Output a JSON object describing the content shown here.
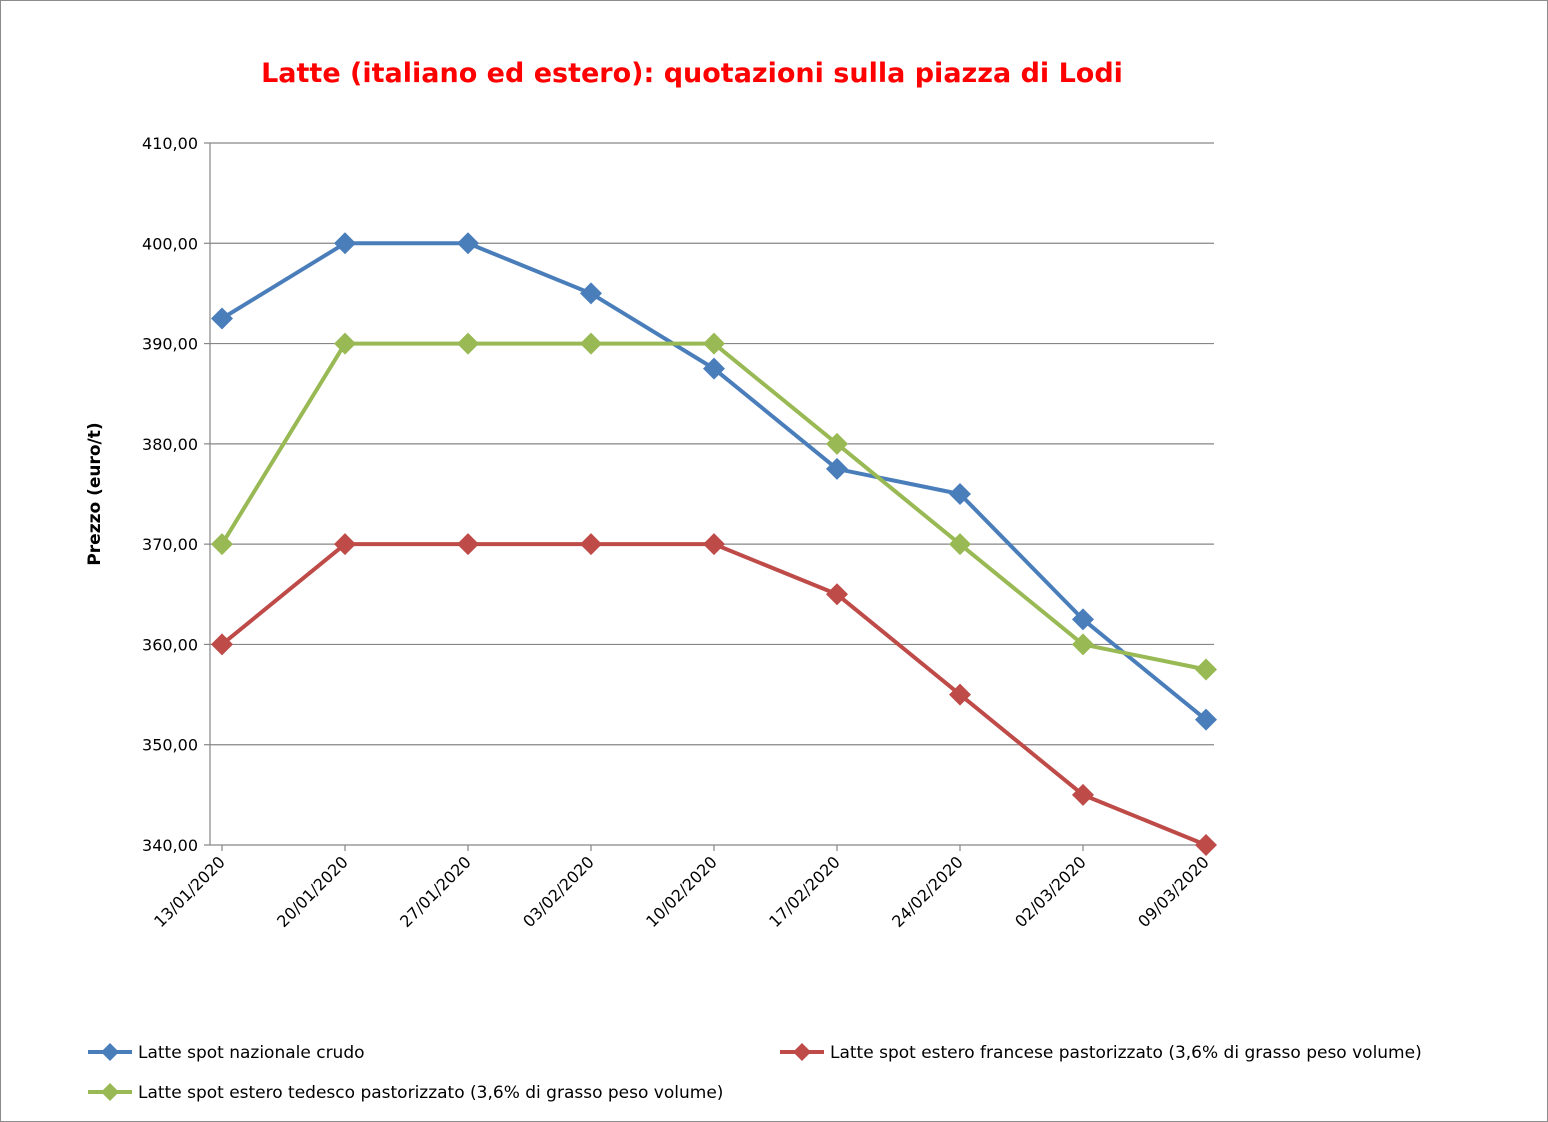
{
  "chart_data": {
    "type": "line",
    "title": "Latte (italiano ed estero): quotazioni sulla piazza di Lodi",
    "ylabel": "Prezzo (euro/t)",
    "xlabel": "",
    "categories": [
      "13/01/2020",
      "20/01/2020",
      "27/01/2020",
      "03/02/2020",
      "10/02/2020",
      "17/02/2020",
      "24/02/2020",
      "02/03/2020",
      "09/03/2020"
    ],
    "ylim": [
      340,
      410
    ],
    "yticks": [
      "340,00",
      "350,00",
      "360,00",
      "370,00",
      "380,00",
      "390,00",
      "400,00",
      "410,00"
    ],
    "grid": true,
    "legend_position": "bottom",
    "series": [
      {
        "name": "Latte spot nazionale crudo",
        "color": "#4a7ebb",
        "values": [
          392.5,
          400,
          400,
          395,
          387.5,
          377.5,
          375,
          362.5,
          352.5
        ]
      },
      {
        "name": "Latte spot estero francese pastorizzato (3,6% di grasso peso volume)",
        "color": "#be4b48",
        "values": [
          360,
          370,
          370,
          370,
          370,
          365,
          355,
          345,
          340
        ]
      },
      {
        "name": "Latte spot estero tedesco pastorizzato (3,6% di grasso peso volume)",
        "color": "#98b954",
        "values": [
          370,
          390,
          390,
          390,
          390,
          380,
          370,
          360,
          357.5
        ]
      }
    ]
  }
}
